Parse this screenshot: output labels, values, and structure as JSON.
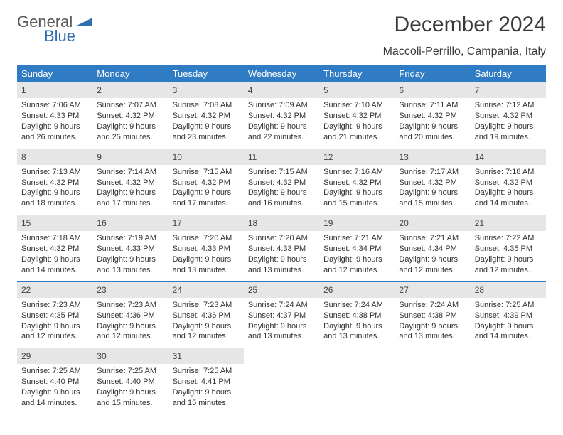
{
  "brand": {
    "part1": "General",
    "part2": "Blue"
  },
  "title": "December 2024",
  "location": "Maccoli-Perrillo, Campania, Italy",
  "colors": {
    "header_bg": "#2f7bc4",
    "header_text": "#ffffff",
    "daynum_bg": "#e6e6e6",
    "rule": "#2f7bc4",
    "brand_gray": "#5a5a5a",
    "brand_blue": "#2f6fae"
  },
  "weekdays": [
    "Sunday",
    "Monday",
    "Tuesday",
    "Wednesday",
    "Thursday",
    "Friday",
    "Saturday"
  ],
  "weeks": [
    [
      {
        "day": "1",
        "sunrise": "7:06 AM",
        "sunset": "4:33 PM",
        "daylight": "9 hours and 26 minutes."
      },
      {
        "day": "2",
        "sunrise": "7:07 AM",
        "sunset": "4:32 PM",
        "daylight": "9 hours and 25 minutes."
      },
      {
        "day": "3",
        "sunrise": "7:08 AM",
        "sunset": "4:32 PM",
        "daylight": "9 hours and 23 minutes."
      },
      {
        "day": "4",
        "sunrise": "7:09 AM",
        "sunset": "4:32 PM",
        "daylight": "9 hours and 22 minutes."
      },
      {
        "day": "5",
        "sunrise": "7:10 AM",
        "sunset": "4:32 PM",
        "daylight": "9 hours and 21 minutes."
      },
      {
        "day": "6",
        "sunrise": "7:11 AM",
        "sunset": "4:32 PM",
        "daylight": "9 hours and 20 minutes."
      },
      {
        "day": "7",
        "sunrise": "7:12 AM",
        "sunset": "4:32 PM",
        "daylight": "9 hours and 19 minutes."
      }
    ],
    [
      {
        "day": "8",
        "sunrise": "7:13 AM",
        "sunset": "4:32 PM",
        "daylight": "9 hours and 18 minutes."
      },
      {
        "day": "9",
        "sunrise": "7:14 AM",
        "sunset": "4:32 PM",
        "daylight": "9 hours and 17 minutes."
      },
      {
        "day": "10",
        "sunrise": "7:15 AM",
        "sunset": "4:32 PM",
        "daylight": "9 hours and 17 minutes."
      },
      {
        "day": "11",
        "sunrise": "7:15 AM",
        "sunset": "4:32 PM",
        "daylight": "9 hours and 16 minutes."
      },
      {
        "day": "12",
        "sunrise": "7:16 AM",
        "sunset": "4:32 PM",
        "daylight": "9 hours and 15 minutes."
      },
      {
        "day": "13",
        "sunrise": "7:17 AM",
        "sunset": "4:32 PM",
        "daylight": "9 hours and 15 minutes."
      },
      {
        "day": "14",
        "sunrise": "7:18 AM",
        "sunset": "4:32 PM",
        "daylight": "9 hours and 14 minutes."
      }
    ],
    [
      {
        "day": "15",
        "sunrise": "7:18 AM",
        "sunset": "4:32 PM",
        "daylight": "9 hours and 14 minutes."
      },
      {
        "day": "16",
        "sunrise": "7:19 AM",
        "sunset": "4:33 PM",
        "daylight": "9 hours and 13 minutes."
      },
      {
        "day": "17",
        "sunrise": "7:20 AM",
        "sunset": "4:33 PM",
        "daylight": "9 hours and 13 minutes."
      },
      {
        "day": "18",
        "sunrise": "7:20 AM",
        "sunset": "4:33 PM",
        "daylight": "9 hours and 13 minutes."
      },
      {
        "day": "19",
        "sunrise": "7:21 AM",
        "sunset": "4:34 PM",
        "daylight": "9 hours and 12 minutes."
      },
      {
        "day": "20",
        "sunrise": "7:21 AM",
        "sunset": "4:34 PM",
        "daylight": "9 hours and 12 minutes."
      },
      {
        "day": "21",
        "sunrise": "7:22 AM",
        "sunset": "4:35 PM",
        "daylight": "9 hours and 12 minutes."
      }
    ],
    [
      {
        "day": "22",
        "sunrise": "7:23 AM",
        "sunset": "4:35 PM",
        "daylight": "9 hours and 12 minutes."
      },
      {
        "day": "23",
        "sunrise": "7:23 AM",
        "sunset": "4:36 PM",
        "daylight": "9 hours and 12 minutes."
      },
      {
        "day": "24",
        "sunrise": "7:23 AM",
        "sunset": "4:36 PM",
        "daylight": "9 hours and 12 minutes."
      },
      {
        "day": "25",
        "sunrise": "7:24 AM",
        "sunset": "4:37 PM",
        "daylight": "9 hours and 13 minutes."
      },
      {
        "day": "26",
        "sunrise": "7:24 AM",
        "sunset": "4:38 PM",
        "daylight": "9 hours and 13 minutes."
      },
      {
        "day": "27",
        "sunrise": "7:24 AM",
        "sunset": "4:38 PM",
        "daylight": "9 hours and 13 minutes."
      },
      {
        "day": "28",
        "sunrise": "7:25 AM",
        "sunset": "4:39 PM",
        "daylight": "9 hours and 14 minutes."
      }
    ],
    [
      {
        "day": "29",
        "sunrise": "7:25 AM",
        "sunset": "4:40 PM",
        "daylight": "9 hours and 14 minutes."
      },
      {
        "day": "30",
        "sunrise": "7:25 AM",
        "sunset": "4:40 PM",
        "daylight": "9 hours and 15 minutes."
      },
      {
        "day": "31",
        "sunrise": "7:25 AM",
        "sunset": "4:41 PM",
        "daylight": "9 hours and 15 minutes."
      },
      null,
      null,
      null,
      null
    ]
  ],
  "labels": {
    "sunrise_prefix": "Sunrise: ",
    "sunset_prefix": "Sunset: ",
    "daylight_prefix": "Daylight: "
  }
}
